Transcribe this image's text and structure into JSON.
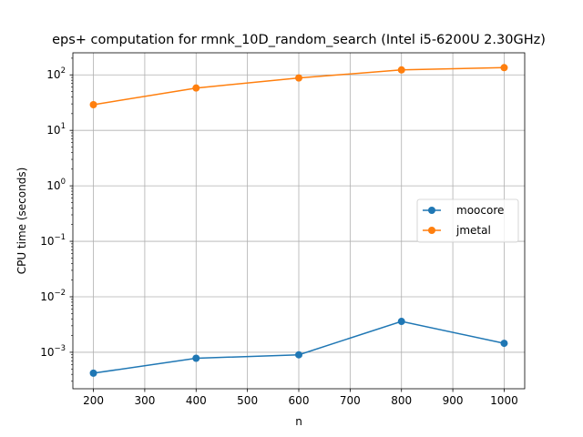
{
  "chart_data": {
    "type": "line",
    "title": "eps+ computation for rmnk_10D_random_search (Intel i5-6200U 2.30GHz)",
    "xlabel": "n",
    "ylabel": "CPU time (seconds)",
    "x": [
      200,
      400,
      600,
      800,
      1000
    ],
    "xlim": [
      160,
      1040
    ],
    "xticks": [
      200,
      300,
      400,
      500,
      600,
      700,
      800,
      900,
      1000
    ],
    "yscale": "log",
    "ylim": [
      0.00022,
      250
    ],
    "yticks": [
      {
        "value": 0.001,
        "mantissa": "10",
        "exp": "−3"
      },
      {
        "value": 0.01,
        "mantissa": "10",
        "exp": "−2"
      },
      {
        "value": 0.1,
        "mantissa": "10",
        "exp": "−1"
      },
      {
        "value": 1,
        "mantissa": "10",
        "exp": "0"
      },
      {
        "value": 10,
        "mantissa": "10",
        "exp": "1"
      },
      {
        "value": 100,
        "mantissa": "10",
        "exp": "2"
      }
    ],
    "grid": true,
    "legend_position": "center-right",
    "series": [
      {
        "name": "moocore",
        "color": "#1f77b4",
        "marker": "circle",
        "values": [
          0.00042,
          0.00078,
          0.0009,
          0.0036,
          0.00145
        ]
      },
      {
        "name": "jmetal",
        "color": "#ff7f0e",
        "marker": "circle",
        "values": [
          29,
          58,
          88,
          123,
          135
        ]
      }
    ]
  }
}
